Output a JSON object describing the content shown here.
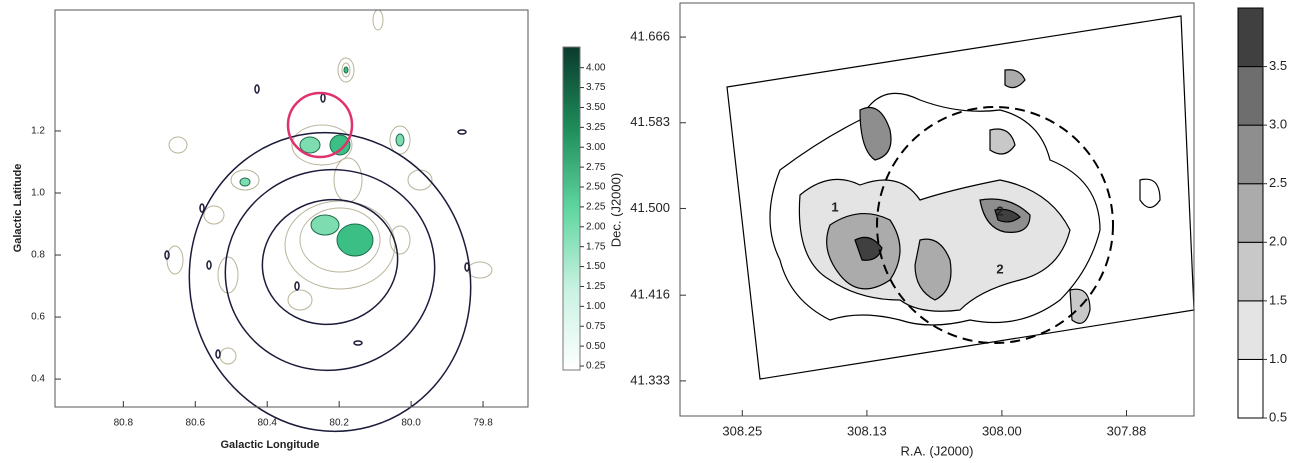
{
  "chart_data": [
    {
      "type": "contour",
      "xlabel": "Galactic Longitude",
      "ylabel": "Galactic Latitude",
      "xlim": [
        80.99,
        79.675
      ],
      "ylim": [
        0.31,
        1.59
      ],
      "xticks": [
        80.8,
        80.6,
        80.4,
        80.2,
        {
          "value": 80,
          "label": "80.0"
        },
        79.8
      ],
      "yticks": [
        0.4,
        0.6,
        0.8,
        {
          "value": 1,
          "label": "1.0"
        },
        1.2
      ],
      "colorbar": {
        "lim": [
          0.2,
          4.26
        ],
        "colors": [
          "#ffffff",
          "#c8f2e2",
          "#5fd6a0",
          "#1e8c5a",
          "#0b3a2e"
        ],
        "ticks": [
          0.25,
          {
            "value": 0.5,
            "label": "0.50"
          },
          0.75,
          {
            "value": 1,
            "label": "1.00"
          },
          1.25,
          {
            "value": 1.5,
            "label": "1.50"
          },
          1.75,
          {
            "value": 2,
            "label": "2.00"
          },
          2.25,
          {
            "value": 2.5,
            "label": "2.50"
          },
          2.75,
          {
            "value": 3,
            "label": "3.00"
          },
          3.25,
          {
            "value": 3.5,
            "label": "3.50"
          },
          3.75,
          {
            "value": 4,
            "label": "4.00"
          }
        ]
      }
    },
    {
      "type": "contour",
      "xlabel": "R.A. (J2000)",
      "ylabel": "Dec. (J2000)",
      "xlim": [
        308.31,
        307.815
      ],
      "ylim": [
        41.299,
        41.699
      ],
      "xticks": [
        308.25,
        308.13,
        {
          "value": 308,
          "label": "308.00"
        },
        307.88
      ],
      "yticks": [
        41.333,
        41.416,
        {
          "value": 41.5,
          "label": "41.500"
        },
        41.583,
        41.666
      ],
      "annotations": [
        "1",
        "2",
        "2"
      ],
      "colorbar": {
        "lim": [
          0.5,
          4.0
        ],
        "colors": [
          "#ffffff",
          "#e4e4e4",
          "#c8c8c8",
          "#ababab",
          "#8e8e8e",
          "#6e6e6e",
          "#404040"
        ],
        "ticks": [
          0.5,
          {
            "value": 1,
            "label": "1.0"
          },
          1.5,
          {
            "value": 2,
            "label": "2.0"
          },
          2.5,
          {
            "value": 3,
            "label": "3.0"
          },
          3.5
        ]
      }
    }
  ]
}
